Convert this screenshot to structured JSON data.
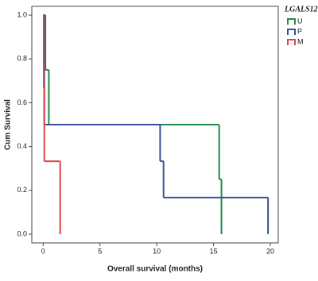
{
  "chart_data": {
    "type": "step",
    "xlabel": "Overall survival (months)",
    "ylabel": "Cum Survival",
    "legend_title": "LGALS12",
    "legend": "right",
    "xlim": [
      -1,
      20.7
    ],
    "ylim": [
      -0.04,
      1.04
    ],
    "xticks": [
      0,
      5,
      10,
      15,
      20
    ],
    "yticks": [
      {
        "value": 0,
        "label": "0.0"
      },
      {
        "value": 0.2,
        "label": "0.2"
      },
      {
        "value": 0.4,
        "label": "0.4"
      },
      {
        "value": 0.6,
        "label": "0.6"
      },
      {
        "value": 0.8,
        "label": "0.8"
      },
      {
        "value": 1,
        "label": "1.0"
      }
    ],
    "series": [
      {
        "name": "U",
        "color": "#1f8a4c",
        "x": [
          0,
          0.2,
          0.5,
          15.5,
          15.7
        ],
        "values": [
          1,
          0.75,
          0.5,
          0.25,
          0
        ]
      },
      {
        "name": "P",
        "color": "#3a4f9a",
        "x": [
          0,
          0.1,
          10.3,
          10.6,
          19.8
        ],
        "values": [
          1,
          0.5,
          0.333,
          0.167,
          0
        ]
      },
      {
        "name": "M",
        "color": "#e04545",
        "x": [
          0,
          0.05,
          0.1,
          1.5
        ],
        "values": [
          1,
          0.667,
          0.333,
          0
        ]
      }
    ]
  }
}
